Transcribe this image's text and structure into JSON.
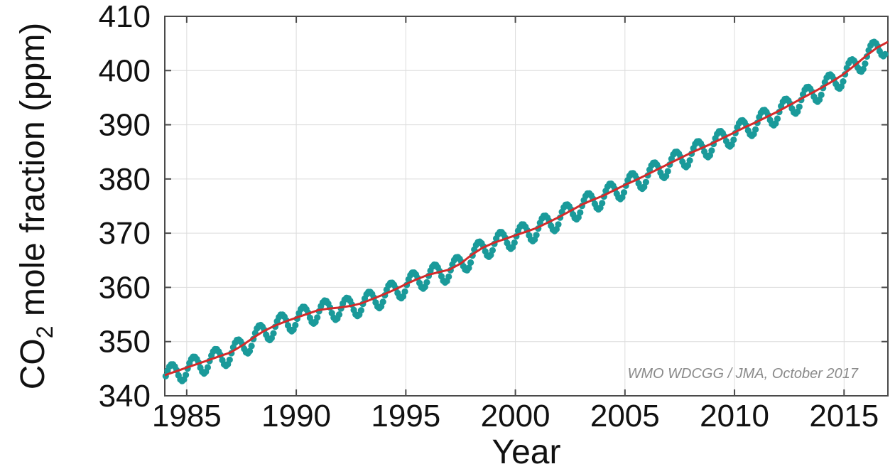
{
  "chart_data": {
    "type": "line",
    "title": "",
    "xlabel": "Year",
    "ylabel": {
      "prefix": "CO",
      "subscript": "2",
      "suffix": " mole fraction (ppm)"
    },
    "annotation": "WMO WDCGG / JMA, October 2017",
    "xlim": [
      1984,
      2017
    ],
    "ylim": [
      340,
      410
    ],
    "xticks": [
      1985,
      1990,
      1995,
      2000,
      2005,
      2010,
      2015
    ],
    "yticks": [
      340,
      350,
      360,
      370,
      380,
      390,
      400,
      410
    ],
    "grid": true,
    "legend": "none",
    "seasonal_amplitude_ppm": {
      "peak": 1.6,
      "trough": -2.2
    },
    "series": [
      {
        "style": "monthly-points",
        "color": "#1a9a9a",
        "x": [
          1984.0,
          1984.5,
          1985.0,
          1985.5,
          1986.0,
          1986.5,
          1987.0,
          1987.5,
          1988.0,
          1988.5,
          1989.0,
          1989.5,
          1990.0,
          1990.5,
          1991.0,
          1991.5,
          1992.0,
          1992.5,
          1993.0,
          1993.5,
          1994.0,
          1994.5,
          1995.0,
          1995.5,
          1996.0,
          1996.5,
          1997.0,
          1997.5,
          1998.0,
          1998.5,
          1999.0,
          1999.5,
          2000.0,
          2000.5,
          2001.0,
          2001.5,
          2002.0,
          2002.5,
          2003.0,
          2003.5,
          2004.0,
          2004.5,
          2005.0,
          2005.5,
          2006.0,
          2006.5,
          2007.0,
          2007.5,
          2008.0,
          2008.5,
          2009.0,
          2009.5,
          2010.0,
          2010.5,
          2011.0,
          2011.5,
          2012.0,
          2012.5,
          2013.0,
          2013.5,
          2014.0,
          2014.5,
          2015.0,
          2015.5,
          2016.0,
          2016.5,
          2017.0
        ]
      },
      {
        "style": "trend-line",
        "color": "#d42a2a",
        "x": [
          1984.0,
          1984.5,
          1985.0,
          1985.5,
          1986.0,
          1986.5,
          1987.0,
          1987.5,
          1988.0,
          1988.5,
          1989.0,
          1989.5,
          1990.0,
          1990.5,
          1991.0,
          1991.5,
          1992.0,
          1992.5,
          1993.0,
          1993.5,
          1994.0,
          1994.5,
          1995.0,
          1995.5,
          1996.0,
          1996.5,
          1997.0,
          1997.5,
          1998.0,
          1998.5,
          1999.0,
          1999.5,
          2000.0,
          2000.5,
          2001.0,
          2001.5,
          2002.0,
          2002.5,
          2003.0,
          2003.5,
          2004.0,
          2004.5,
          2005.0,
          2005.5,
          2006.0,
          2006.5,
          2007.0,
          2007.5,
          2008.0,
          2008.5,
          2009.0,
          2009.5,
          2010.0,
          2010.5,
          2011.0,
          2011.5,
          2012.0,
          2012.5,
          2013.0,
          2013.5,
          2014.0,
          2014.5,
          2015.0,
          2015.5,
          2016.0,
          2016.5,
          2017.0
        ],
        "y": [
          343.8,
          344.5,
          345.2,
          345.9,
          346.6,
          347.3,
          348.0,
          349.2,
          350.6,
          351.9,
          352.9,
          353.7,
          354.4,
          355.1,
          355.8,
          356.1,
          356.3,
          356.6,
          357.1,
          357.9,
          358.7,
          359.6,
          360.6,
          361.5,
          362.3,
          362.8,
          363.3,
          364.4,
          366.0,
          367.3,
          368.2,
          368.9,
          369.6,
          370.3,
          371.0,
          372.0,
          373.0,
          374.1,
          375.2,
          376.1,
          376.9,
          377.9,
          378.9,
          379.8,
          380.8,
          381.8,
          382.8,
          383.8,
          384.8,
          385.7,
          386.6,
          387.6,
          388.6,
          389.6,
          390.5,
          391.5,
          392.5,
          393.6,
          394.7,
          395.8,
          396.9,
          398.1,
          399.4,
          401.0,
          402.7,
          404.2,
          405.3
        ]
      }
    ]
  }
}
